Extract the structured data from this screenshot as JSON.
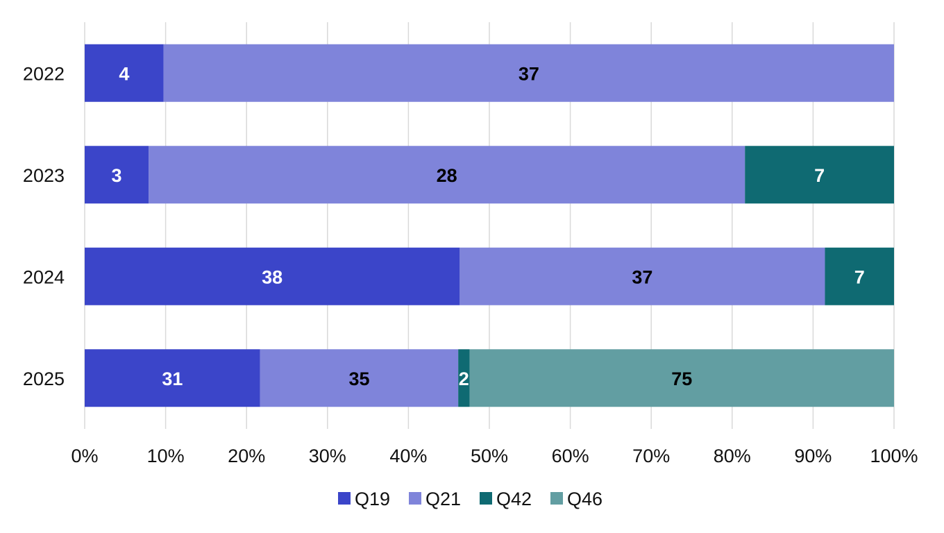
{
  "chart_data": {
    "type": "bar",
    "orientation": "horizontal",
    "stacking": "percent",
    "categories": [
      "2022",
      "2023",
      "2024",
      "2025"
    ],
    "series": [
      {
        "name": "Q19",
        "color": "#3b45c9",
        "label_color": "#ffffff",
        "values": [
          4,
          3,
          38,
          31
        ]
      },
      {
        "name": "Q21",
        "color": "#7f84da",
        "label_color": "#000000",
        "values": [
          37,
          28,
          37,
          35
        ]
      },
      {
        "name": "Q42",
        "color": "#0f6a72",
        "label_color": "#ffffff",
        "values": [
          null,
          7,
          7,
          2
        ]
      },
      {
        "name": "Q46",
        "color": "#629ea2",
        "label_color": "#000000",
        "values": [
          null,
          null,
          null,
          75
        ]
      }
    ],
    "x_ticks": [
      "0%",
      "10%",
      "20%",
      "30%",
      "40%",
      "50%",
      "60%",
      "70%",
      "80%",
      "90%",
      "100%"
    ],
    "xlim": [
      0,
      100
    ],
    "grid": true,
    "legend_position": "bottom",
    "title": "",
    "xlabel": "",
    "ylabel": ""
  }
}
